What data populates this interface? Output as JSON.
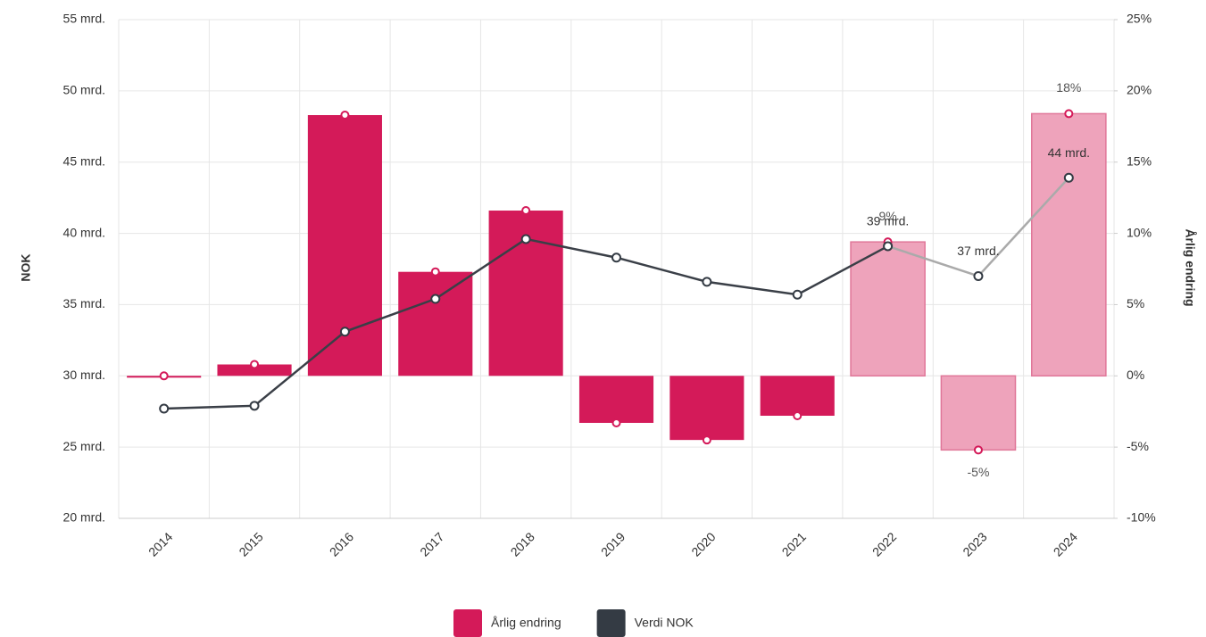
{
  "chart_data": {
    "type": "bar-line",
    "y_label": "NOK",
    "y2_label": "Årlig endring",
    "categories": [
      "2014",
      "2015",
      "2016",
      "2017",
      "2018",
      "2019",
      "2020",
      "2021",
      "2022",
      "2023",
      "2024"
    ],
    "ylim": [
      20,
      55
    ],
    "yticks": [
      {
        "value": 20,
        "label": "20 mrd."
      },
      {
        "value": 25,
        "label": "25 mrd."
      },
      {
        "value": 30,
        "label": "30 mrd."
      },
      {
        "value": 35,
        "label": "35 mrd."
      },
      {
        "value": 40,
        "label": "40 mrd."
      },
      {
        "value": 45,
        "label": "45 mrd."
      },
      {
        "value": 50,
        "label": "50 mrd."
      },
      {
        "value": 55,
        "label": "55 mrd."
      }
    ],
    "y2lim": [
      -10,
      25
    ],
    "y2ticks": [
      {
        "value": -10,
        "label": "-10%"
      },
      {
        "value": -5,
        "label": "-5%"
      },
      {
        "value": 0,
        "label": "0%"
      },
      {
        "value": 5,
        "label": "5%"
      },
      {
        "value": 10,
        "label": "10%"
      },
      {
        "value": 15,
        "label": "15%"
      },
      {
        "value": 20,
        "label": "20%"
      },
      {
        "value": 25,
        "label": "25%"
      }
    ],
    "grid": true,
    "legend": "bottom",
    "series": [
      {
        "name": "Årlig endring",
        "type": "bar",
        "axis": "y2",
        "color": "#d41a59",
        "colors": [
          "#d41a59",
          "#d41a59",
          "#d41a59",
          "#d41a59",
          "#d41a59",
          "#d41a59",
          "#d41a59",
          "#d41a59",
          "#eea3bb",
          "#eea3bb",
          "#eea3bb"
        ],
        "values": [
          0,
          0.8,
          18.3,
          7.3,
          11.6,
          -3.3,
          -4.5,
          -2.8,
          9.4,
          -5.2,
          18.4
        ],
        "value_labels": [
          null,
          null,
          null,
          null,
          null,
          null,
          null,
          null,
          "9%",
          "-5%",
          "18%"
        ]
      },
      {
        "name": "Verdi NOK",
        "type": "line",
        "axis": "y",
        "color": "#343b44",
        "colors": [
          "#3a3f47",
          "#3a3f47",
          "#3a3f47",
          "#3a3f47",
          "#3a3f47",
          "#3a3f47",
          "#3a3f47",
          "#3a3f47",
          "#3a3f47",
          "#aaaaaa",
          "#aaaaaa"
        ],
        "values": [
          27.7,
          27.9,
          33.1,
          35.4,
          39.6,
          38.3,
          36.6,
          35.7,
          39.1,
          37.0,
          43.9
        ],
        "value_labels": [
          null,
          null,
          null,
          null,
          null,
          null,
          null,
          null,
          "39 mrd.",
          "37 mrd.",
          "44 mrd."
        ]
      }
    ]
  }
}
